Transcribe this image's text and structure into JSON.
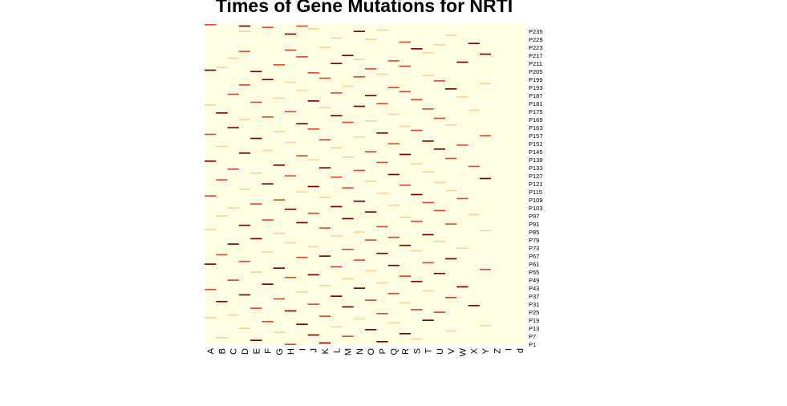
{
  "chart_data": {
    "type": "heatmap",
    "title": "Times of Gene Mutations for NRTI",
    "xlabel": "",
    "ylabel": "",
    "x_categories": [
      "A",
      "B",
      "C",
      "D",
      "E",
      "F",
      "G",
      "H",
      "I",
      "J",
      "K",
      "L",
      "M",
      "N",
      "O",
      "P",
      "Q",
      "R",
      "S",
      "T",
      "U",
      "V",
      "W",
      "X",
      "Y",
      "Z",
      "I",
      "d"
    ],
    "y_tick_labels": [
      "P1",
      "P7",
      "P13",
      "P19",
      "P25",
      "P31",
      "P37",
      "P43",
      "P49",
      "P55",
      "P61",
      "P67",
      "P73",
      "P79",
      "P85",
      "P91",
      "P97",
      "P103",
      "P109",
      "P115",
      "P121",
      "P127",
      "P133",
      "P139",
      "P145",
      "P151",
      "P157",
      "P163",
      "P169",
      "P175",
      "P181",
      "P187",
      "P193",
      "P199",
      "P205",
      "P211",
      "P217",
      "P223",
      "P229",
      "P235"
    ],
    "rows_total": 240,
    "row_order": "P1 at bottom, P240 at top",
    "value_range": [
      0,
      3
    ],
    "color_scale": [
      "#FFFFC8",
      "#FDD49E",
      "#F39C1F",
      "#E34A33",
      "#7F0000"
    ],
    "background_color": "#FFFFE0",
    "separator_color": "#FFFFFF",
    "nonzero_cells": [
      [
        239,
        0,
        2
      ],
      [
        238,
        3,
        3
      ],
      [
        238,
        8,
        2
      ],
      [
        237,
        5,
        2
      ],
      [
        236,
        9,
        1
      ],
      [
        235,
        15,
        1
      ],
      [
        234,
        13,
        3
      ],
      [
        234,
        3,
        1
      ],
      [
        232,
        7,
        3
      ],
      [
        231,
        21,
        1
      ],
      [
        229,
        11,
        1
      ],
      [
        228,
        14,
        1
      ],
      [
        226,
        17,
        2
      ],
      [
        225,
        23,
        3
      ],
      [
        224,
        20,
        1
      ],
      [
        222,
        10,
        1
      ],
      [
        221,
        18,
        3
      ],
      [
        220,
        7,
        2
      ],
      [
        219,
        3,
        2
      ],
      [
        218,
        19,
        1
      ],
      [
        217,
        24,
        3
      ],
      [
        216,
        12,
        3
      ],
      [
        215,
        8,
        2
      ],
      [
        214,
        2,
        1
      ],
      [
        213,
        13,
        1
      ],
      [
        212,
        16,
        2
      ],
      [
        211,
        22,
        3
      ],
      [
        210,
        11,
        3
      ],
      [
        209,
        6,
        2
      ],
      [
        208,
        17,
        2
      ],
      [
        207,
        1,
        1
      ],
      [
        206,
        14,
        2
      ],
      [
        205,
        0,
        3
      ],
      [
        204,
        4,
        3
      ],
      [
        203,
        9,
        2
      ],
      [
        202,
        15,
        1
      ],
      [
        201,
        19,
        1
      ],
      [
        200,
        13,
        2
      ],
      [
        199,
        10,
        2
      ],
      [
        198,
        5,
        3
      ],
      [
        197,
        20,
        2
      ],
      [
        196,
        7,
        1
      ],
      [
        195,
        24,
        1
      ],
      [
        194,
        3,
        2
      ],
      [
        193,
        12,
        1
      ],
      [
        192,
        16,
        2
      ],
      [
        191,
        21,
        3
      ],
      [
        190,
        8,
        1
      ],
      [
        189,
        17,
        2
      ],
      [
        188,
        11,
        2
      ],
      [
        187,
        2,
        2
      ],
      [
        186,
        14,
        3
      ],
      [
        185,
        22,
        1
      ],
      [
        184,
        6,
        1
      ],
      [
        183,
        18,
        2
      ],
      [
        182,
        9,
        3
      ],
      [
        181,
        4,
        2
      ],
      [
        180,
        15,
        2
      ],
      [
        179,
        0,
        1
      ],
      [
        178,
        13,
        3
      ],
      [
        177,
        10,
        1
      ],
      [
        176,
        19,
        2
      ],
      [
        175,
        23,
        1
      ],
      [
        174,
        7,
        2
      ],
      [
        173,
        1,
        3
      ],
      [
        172,
        16,
        1
      ],
      [
        171,
        11,
        3
      ],
      [
        170,
        5,
        2
      ],
      [
        169,
        20,
        2
      ],
      [
        168,
        3,
        1
      ],
      [
        167,
        14,
        1
      ],
      [
        166,
        12,
        2
      ],
      [
        165,
        8,
        3
      ],
      [
        164,
        21,
        1
      ],
      [
        163,
        17,
        1
      ],
      [
        162,
        2,
        3
      ],
      [
        161,
        9,
        2
      ],
      [
        160,
        18,
        2
      ],
      [
        159,
        6,
        1
      ],
      [
        158,
        15,
        3
      ],
      [
        157,
        0,
        2
      ],
      [
        156,
        24,
        2
      ],
      [
        155,
        13,
        1
      ],
      [
        154,
        4,
        3
      ],
      [
        153,
        10,
        2
      ],
      [
        152,
        19,
        3
      ],
      [
        151,
        7,
        1
      ],
      [
        150,
        16,
        2
      ],
      [
        149,
        22,
        2
      ],
      [
        148,
        1,
        1
      ],
      [
        147,
        11,
        1
      ],
      [
        146,
        20,
        3
      ],
      [
        145,
        5,
        1
      ],
      [
        144,
        14,
        2
      ],
      [
        143,
        3,
        3
      ],
      [
        142,
        17,
        3
      ],
      [
        141,
        8,
        2
      ],
      [
        140,
        12,
        1
      ],
      [
        139,
        21,
        2
      ],
      [
        138,
        9,
        1
      ],
      [
        137,
        0,
        3
      ],
      [
        136,
        15,
        2
      ],
      [
        135,
        18,
        1
      ],
      [
        134,
        6,
        3
      ],
      [
        133,
        23,
        2
      ],
      [
        132,
        10,
        3
      ],
      [
        131,
        2,
        2
      ],
      [
        130,
        13,
        2
      ],
      [
        129,
        19,
        1
      ],
      [
        128,
        4,
        1
      ],
      [
        127,
        16,
        3
      ],
      [
        126,
        7,
        2
      ],
      [
        125,
        11,
        2
      ],
      [
        124,
        24,
        3
      ],
      [
        123,
        1,
        2
      ],
      [
        122,
        14,
        1
      ],
      [
        121,
        20,
        1
      ],
      [
        120,
        5,
        3
      ],
      [
        119,
        17,
        2
      ],
      [
        118,
        9,
        3
      ],
      [
        117,
        12,
        2
      ],
      [
        116,
        3,
        1
      ],
      [
        115,
        21,
        1
      ],
      [
        114,
        8,
        1
      ],
      [
        113,
        15,
        1
      ],
      [
        112,
        18,
        3
      ],
      [
        111,
        0,
        2
      ],
      [
        110,
        10,
        1
      ],
      [
        109,
        22,
        2
      ],
      [
        108,
        6,
        2
      ],
      [
        107,
        13,
        3
      ],
      [
        106,
        19,
        2
      ],
      [
        105,
        4,
        2
      ],
      [
        104,
        16,
        1
      ],
      [
        103,
        11,
        3
      ],
      [
        102,
        2,
        1
      ],
      [
        101,
        7,
        3
      ],
      [
        100,
        20,
        2
      ],
      [
        99,
        14,
        3
      ],
      [
        98,
        9,
        2
      ],
      [
        97,
        23,
        1
      ],
      [
        96,
        1,
        1
      ],
      [
        95,
        17,
        1
      ],
      [
        94,
        12,
        3
      ],
      [
        93,
        5,
        2
      ],
      [
        92,
        18,
        2
      ],
      [
        91,
        8,
        3
      ],
      [
        90,
        21,
        2
      ],
      [
        89,
        3,
        3
      ],
      [
        88,
        15,
        2
      ],
      [
        87,
        10,
        2
      ],
      [
        86,
        0,
        1
      ],
      [
        85,
        24,
        1
      ],
      [
        84,
        13,
        1
      ],
      [
        83,
        6,
        1
      ],
      [
        82,
        19,
        3
      ],
      [
        81,
        11,
        1
      ],
      [
        80,
        16,
        2
      ],
      [
        79,
        4,
        3
      ],
      [
        78,
        14,
        2
      ],
      [
        77,
        20,
        1
      ],
      [
        76,
        7,
        1
      ],
      [
        75,
        2,
        3
      ],
      [
        74,
        17,
        3
      ],
      [
        73,
        9,
        1
      ],
      [
        72,
        22,
        1
      ],
      [
        71,
        12,
        2
      ],
      [
        70,
        18,
        1
      ],
      [
        69,
        5,
        1
      ],
      [
        68,
        15,
        3
      ],
      [
        67,
        1,
        2
      ],
      [
        66,
        10,
        3
      ],
      [
        65,
        8,
        2
      ],
      [
        64,
        21,
        3
      ],
      [
        63,
        13,
        2
      ],
      [
        62,
        3,
        2
      ],
      [
        61,
        19,
        2
      ],
      [
        60,
        0,
        3
      ],
      [
        59,
        16,
        3
      ],
      [
        58,
        11,
        2
      ],
      [
        57,
        6,
        3
      ],
      [
        56,
        24,
        2
      ],
      [
        55,
        14,
        1
      ],
      [
        54,
        4,
        1
      ],
      [
        53,
        20,
        3
      ],
      [
        52,
        9,
        3
      ],
      [
        51,
        17,
        2
      ],
      [
        50,
        7,
        2
      ],
      [
        49,
        12,
        1
      ],
      [
        48,
        2,
        2
      ],
      [
        47,
        18,
        3
      ],
      [
        46,
        15,
        1
      ],
      [
        45,
        5,
        3
      ],
      [
        44,
        10,
        1
      ],
      [
        43,
        22,
        3
      ],
      [
        42,
        13,
        3
      ],
      [
        41,
        0,
        2
      ],
      [
        40,
        19,
        1
      ],
      [
        39,
        8,
        1
      ],
      [
        38,
        16,
        2
      ],
      [
        37,
        3,
        3
      ],
      [
        36,
        11,
        3
      ],
      [
        35,
        21,
        2
      ],
      [
        34,
        6,
        2
      ],
      [
        33,
        14,
        2
      ],
      [
        32,
        1,
        3
      ],
      [
        31,
        17,
        1
      ],
      [
        30,
        9,
        2
      ],
      [
        29,
        23,
        3
      ],
      [
        28,
        12,
        3
      ],
      [
        27,
        4,
        2
      ],
      [
        26,
        18,
        2
      ],
      [
        25,
        7,
        3
      ],
      [
        24,
        20,
        2
      ],
      [
        23,
        15,
        2
      ],
      [
        22,
        2,
        1
      ],
      [
        21,
        10,
        2
      ],
      [
        20,
        0,
        1
      ],
      [
        19,
        13,
        1
      ],
      [
        18,
        19,
        3
      ],
      [
        17,
        5,
        2
      ],
      [
        16,
        16,
        1
      ],
      [
        15,
        8,
        3
      ],
      [
        14,
        24,
        1
      ],
      [
        13,
        11,
        1
      ],
      [
        12,
        3,
        1
      ],
      [
        11,
        14,
        3
      ],
      [
        10,
        21,
        1
      ],
      [
        9,
        6,
        1
      ],
      [
        8,
        17,
        3
      ],
      [
        7,
        9,
        3
      ],
      [
        6,
        12,
        2
      ],
      [
        5,
        1,
        1
      ],
      [
        4,
        18,
        1
      ],
      [
        3,
        4,
        3
      ],
      [
        2,
        15,
        3
      ],
      [
        1,
        10,
        3
      ],
      [
        0,
        7,
        2
      ]
    ],
    "grid": false,
    "legend": "none"
  }
}
